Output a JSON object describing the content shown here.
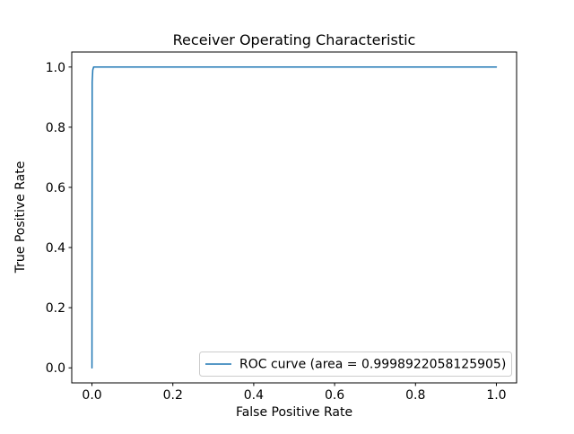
{
  "chart_data": {
    "type": "line",
    "title": "Receiver Operating Characteristic",
    "xlabel": "False Positive Rate",
    "ylabel": "True Positive Rate",
    "x_ticks": [
      "0.0",
      "0.2",
      "0.4",
      "0.6",
      "0.8",
      "1.0"
    ],
    "y_ticks": [
      "0.0",
      "0.2",
      "0.4",
      "0.6",
      "0.8",
      "1.0"
    ],
    "xlim": [
      -0.05,
      1.05
    ],
    "ylim": [
      -0.05,
      1.05
    ],
    "grid": false,
    "legend": {
      "position": "lower right",
      "entries": [
        {
          "label": "ROC curve (area = 0.9998922058125905)",
          "color": "#1f77b4"
        }
      ]
    },
    "series": [
      {
        "name": "ROC curve",
        "color": "#1f77b4",
        "auc": 0.9998922058125905,
        "x": [
          0.0,
          0.0005,
          0.002,
          0.004,
          1.0
        ],
        "y": [
          0.0,
          0.95,
          0.99,
          1.0,
          1.0
        ]
      }
    ]
  }
}
